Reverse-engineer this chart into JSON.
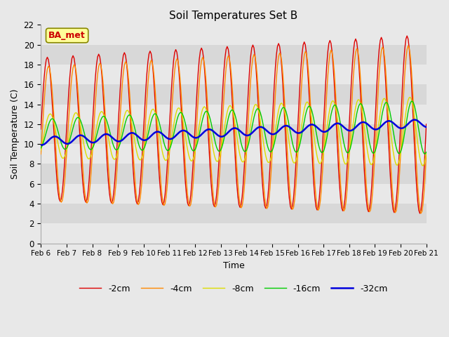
{
  "title": "Soil Temperatures Set B",
  "xlabel": "Time",
  "ylabel": "Soil Temperature (C)",
  "ylim": [
    0,
    22
  ],
  "figsize": [
    6.4,
    4.8
  ],
  "dpi": 100,
  "series_colors": {
    "-2cm": "#dd0000",
    "-4cm": "#ff8800",
    "-8cm": "#dddd00",
    "-16cm": "#00cc00",
    "-32cm": "#0000dd"
  },
  "x_tick_labels": [
    "Feb 6",
    "Feb 7",
    "Feb 8",
    "Feb 9",
    "Feb 10",
    "Feb 11",
    "Feb 12",
    "Feb 13",
    "Feb 14",
    "Feb 15",
    "Feb 16",
    "Feb 17",
    "Feb 18",
    "Feb 19",
    "Feb 20",
    "Feb 21"
  ],
  "x_tick_positions": [
    0,
    1,
    2,
    3,
    4,
    5,
    6,
    7,
    8,
    9,
    10,
    11,
    12,
    13,
    14,
    15
  ],
  "yticks": [
    0,
    2,
    4,
    6,
    8,
    10,
    12,
    14,
    16,
    18,
    20,
    22
  ],
  "bg_color": "#e8e8e8",
  "grid_color": "#ffffff",
  "band_color1": "#d8d8d8",
  "band_color2": "#e8e8e8",
  "annotation_text": "BA_met",
  "annotation_color": "#cc0000",
  "annotation_bg": "#ffff99",
  "annotation_edge": "#888800"
}
